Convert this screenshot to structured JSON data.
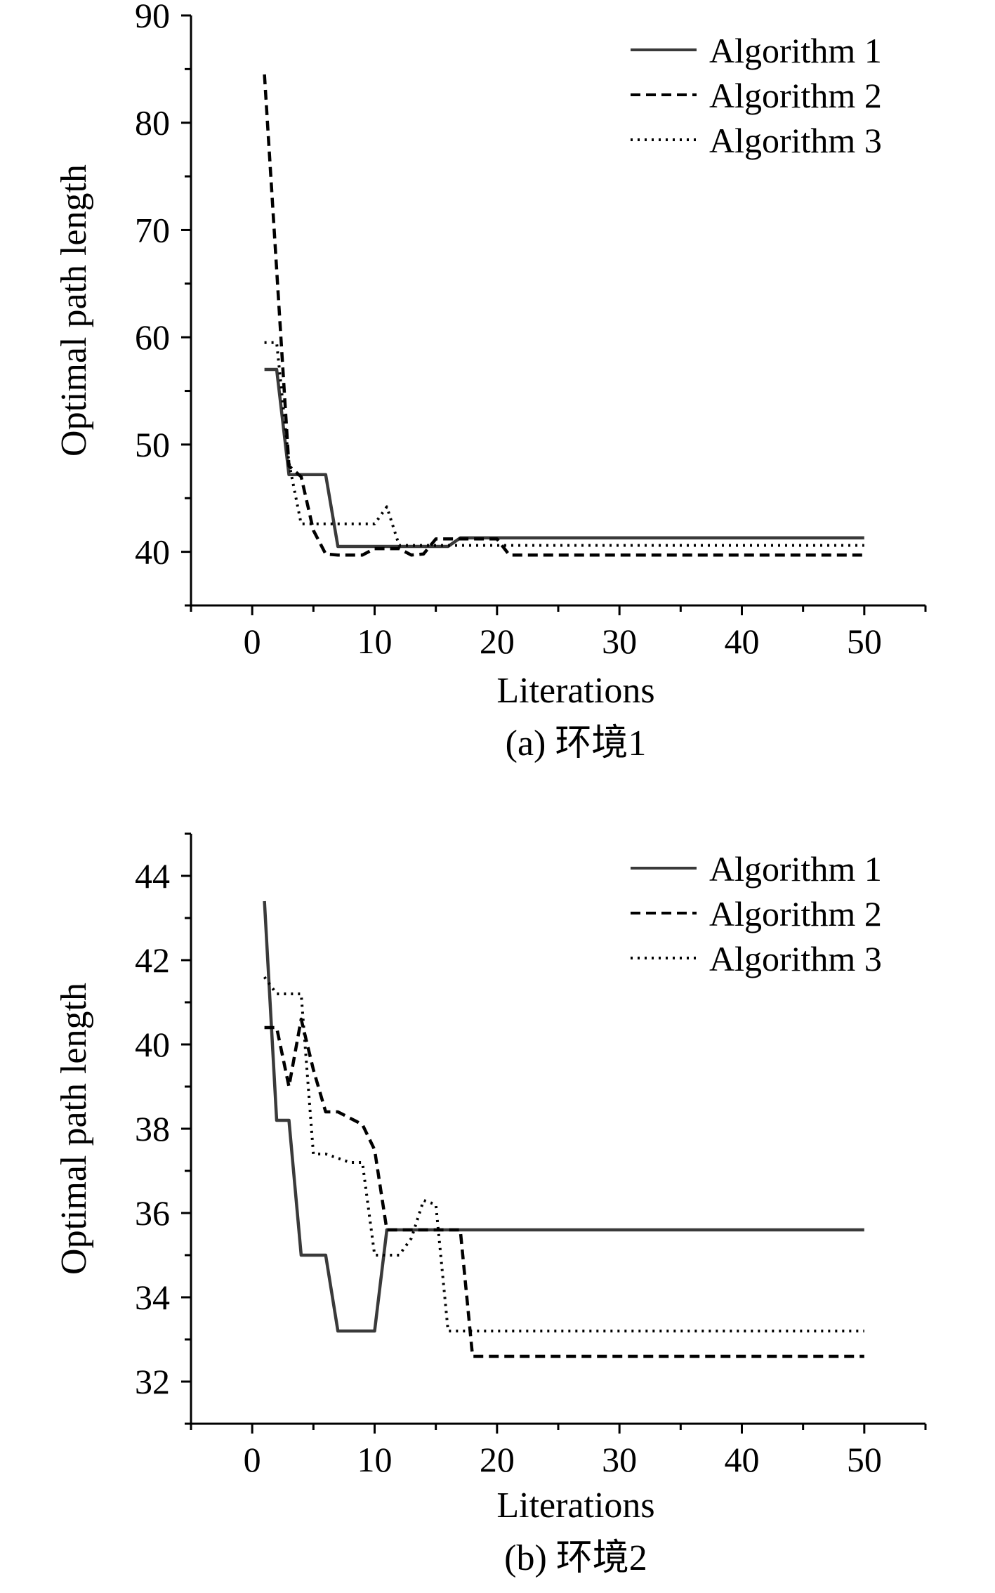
{
  "chart_data": [
    {
      "type": "line",
      "caption": "(a) 环境1",
      "xlabel": "Literations",
      "ylabel": "Optimal path length",
      "xlim": [
        -5,
        55
      ],
      "ylim": [
        35,
        90
      ],
      "xticks": [
        0,
        10,
        20,
        30,
        40,
        50
      ],
      "yticks": [
        40,
        50,
        60,
        70,
        80,
        90
      ],
      "legend_position": "top-right",
      "grid": false,
      "series": [
        {
          "name": "Algorithm 1",
          "style": "solid",
          "x": [
            1,
            2,
            3,
            6,
            7,
            10,
            16,
            17,
            50
          ],
          "y": [
            57,
            57,
            47.2,
            47.2,
            40.5,
            40.5,
            40.5,
            41.3,
            41.3
          ]
        },
        {
          "name": "Algorithm 2",
          "style": "dashed",
          "x": [
            1,
            3,
            4,
            5,
            6,
            7,
            9,
            10,
            12,
            13,
            14,
            15,
            20,
            21,
            50
          ],
          "y": [
            84.5,
            48,
            47,
            42,
            39.8,
            39.7,
            39.7,
            40.3,
            40.3,
            39.7,
            39.8,
            41.2,
            41.2,
            39.7,
            39.7
          ]
        },
        {
          "name": "Algorithm 3",
          "style": "dotted",
          "x": [
            1,
            2,
            3,
            4,
            5,
            6,
            10,
            11,
            12,
            13,
            50
          ],
          "y": [
            59.5,
            59.5,
            48.3,
            42.6,
            42.6,
            42.6,
            42.6,
            44.2,
            40.6,
            40.6,
            40.6
          ]
        }
      ]
    },
    {
      "type": "line",
      "caption": "(b) 环境2",
      "xlabel": "Literations",
      "ylabel": "Optimal path length",
      "xlim": [
        -5,
        55
      ],
      "ylim": [
        31,
        45
      ],
      "xticks": [
        0,
        10,
        20,
        30,
        40,
        50
      ],
      "yticks": [
        32,
        34,
        36,
        38,
        40,
        42,
        44
      ],
      "legend_position": "top-right",
      "grid": false,
      "series": [
        {
          "name": "Algorithm 1",
          "style": "solid",
          "x": [
            1,
            2,
            3,
            4,
            6,
            7,
            10,
            11,
            50
          ],
          "y": [
            43.4,
            38.2,
            38.2,
            35,
            35,
            33.2,
            33.2,
            35.6,
            35.6
          ]
        },
        {
          "name": "Algorithm 2",
          "style": "dashed",
          "x": [
            1,
            2,
            3,
            4,
            5,
            6,
            7,
            9,
            10,
            11,
            17,
            18,
            50
          ],
          "y": [
            40.4,
            40.4,
            39,
            40.6,
            39.4,
            38.4,
            38.4,
            38.1,
            37.5,
            35.6,
            35.6,
            32.6,
            32.6
          ]
        },
        {
          "name": "Algorithm 3",
          "style": "dotted",
          "x": [
            1,
            2,
            3,
            4,
            5,
            6,
            8,
            9,
            10,
            11,
            12,
            13,
            14,
            15,
            16,
            50
          ],
          "y": [
            41.6,
            41.2,
            41.2,
            41.2,
            37.4,
            37.4,
            37.2,
            37.2,
            35,
            35,
            35,
            35.4,
            36.3,
            36.2,
            33.2,
            33.2
          ]
        }
      ]
    }
  ]
}
